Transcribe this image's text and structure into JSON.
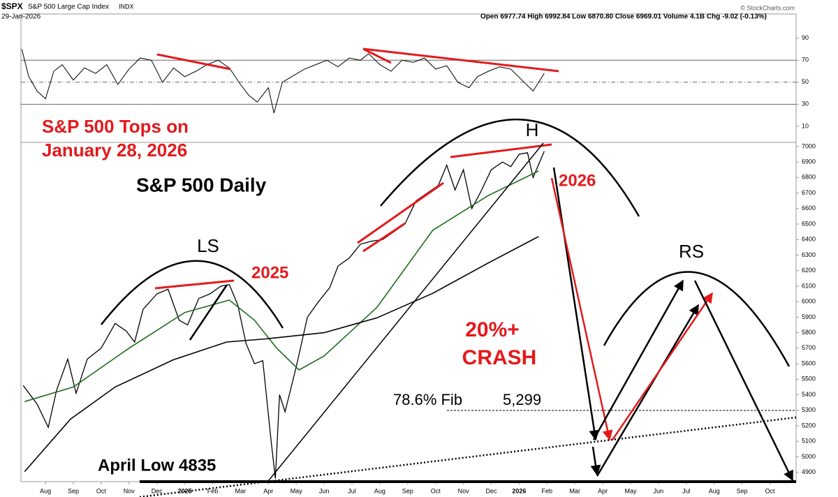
{
  "header": {
    "symbol": "$SPX",
    "name": "S&P 500 Large Cap Index",
    "exchange": "INDX",
    "date": "29-Jan-2026",
    "quote": "Open 6977.74 High 6992.84 Low 6870.80 Close 6969.01 Volume 4.1B Chg -9.02 (-0.13%)",
    "credit": "© StockCharts.com"
  },
  "annotations": {
    "tops1": "S&P 500 Tops on",
    "tops2": "January 28, 2026",
    "daily": "S&P 500 Daily",
    "ls": "LS",
    "y2025": "2025",
    "h": "H",
    "y2026": "2026",
    "rs": "RS",
    "crash1": "20%+",
    "crash2": "CRASH",
    "fib": "78.6% Fib",
    "fib_value": "5,299",
    "april": "April Low 4835"
  },
  "chart_data": {
    "type": "line",
    "xlim": [
      -0.88,
      26.94
    ],
    "xticks": [
      {
        "value": 0,
        "label": "Aug"
      },
      {
        "value": 1,
        "label": "Sep"
      },
      {
        "value": 2,
        "label": "Oct"
      },
      {
        "value": 3,
        "label": "Nov"
      },
      {
        "value": 4,
        "label": "Dec"
      },
      {
        "value": 5,
        "label": "2025"
      },
      {
        "value": 6,
        "label": "Feb"
      },
      {
        "value": 7,
        "label": "Mar"
      },
      {
        "value": 8,
        "label": "Apr"
      },
      {
        "value": 9,
        "label": "May"
      },
      {
        "value": 10,
        "label": "Jun"
      },
      {
        "value": 11,
        "label": "Jul"
      },
      {
        "value": 12,
        "label": "Aug"
      },
      {
        "value": 13,
        "label": "Sep"
      },
      {
        "value": 14,
        "label": "Oct"
      },
      {
        "value": 15,
        "label": "Nov"
      },
      {
        "value": 16,
        "label": "Dec"
      },
      {
        "value": 17,
        "label": "2026"
      },
      {
        "value": 18,
        "label": "Feb"
      },
      {
        "value": 19,
        "label": "Mar"
      },
      {
        "value": 20,
        "label": "Apr"
      },
      {
        "value": 21,
        "label": "May"
      },
      {
        "value": 22,
        "label": "Jun"
      },
      {
        "value": 23,
        "label": "Jul"
      },
      {
        "value": 24,
        "label": "Aug"
      },
      {
        "value": 25,
        "label": "Sep"
      },
      {
        "value": 26,
        "label": "Oct"
      }
    ],
    "ylim": [
      4840,
      7022
    ],
    "yticks": [
      4900,
      5000,
      5100,
      5200,
      5300,
      5400,
      5500,
      5600,
      5700,
      5800,
      5900,
      6000,
      6100,
      6200,
      6300,
      6400,
      6500,
      6600,
      6700,
      6800,
      6900,
      7000
    ],
    "series": [
      {
        "name": "SPX",
        "color": "#000000",
        "x": [
          -0.8,
          -0.3,
          0.1,
          0.4,
          0.8,
          1.1,
          1.5,
          2.0,
          2.5,
          2.9,
          3.2,
          3.5,
          4.0,
          4.4,
          4.8,
          5.1,
          5.5,
          5.9,
          6.3,
          6.6,
          6.9,
          7.2,
          7.5,
          7.8,
          8.1,
          8.25,
          8.4,
          8.6,
          9.0,
          9.4,
          9.8,
          10.2,
          10.5,
          10.9,
          11.3,
          11.7,
          12.1,
          12.5,
          12.9,
          13.3,
          13.7,
          14.1,
          14.4,
          14.7,
          15.0,
          15.3,
          15.6,
          16.0,
          16.4,
          16.7,
          17.0,
          17.3,
          17.5,
          17.9
        ],
        "values": [
          5460,
          5340,
          5190,
          5430,
          5630,
          5410,
          5630,
          5700,
          5860,
          5810,
          5740,
          5950,
          6050,
          6080,
          5880,
          5850,
          6020,
          6050,
          6100,
          6110,
          5980,
          5730,
          5600,
          5620,
          5100,
          4860,
          5400,
          5290,
          5580,
          5900,
          6000,
          6090,
          6230,
          6280,
          6370,
          6390,
          6400,
          6450,
          6500,
          6650,
          6700,
          6750,
          6880,
          6720,
          6850,
          6600,
          6700,
          6850,
          6900,
          6870,
          6950,
          6960,
          6800,
          6969
        ]
      },
      {
        "name": "50-day MA",
        "color": "#1e6b1e",
        "x": [
          -0.75,
          1,
          3,
          5,
          6.6,
          7.5,
          8.3,
          9.1,
          10,
          11.9,
          13.9,
          15.9,
          17.7
        ],
        "values": [
          5356,
          5450,
          5700,
          5930,
          6010,
          5880,
          5700,
          5560,
          5650,
          5964,
          6460,
          6685,
          6842
        ]
      },
      {
        "name": "200-day MA",
        "color": "#000000",
        "x": [
          -0.75,
          0.9,
          2.5,
          4.6,
          6.5,
          7.9,
          10,
          11.9,
          13.9,
          15.9,
          17.7
        ],
        "values": [
          4905,
          5243,
          5450,
          5626,
          5740,
          5760,
          5800,
          5896,
          6054,
          6250,
          6420
        ]
      }
    ],
    "rsi": {
      "ylim": [
        -4,
        112
      ],
      "yticks": [
        10,
        30,
        50,
        70,
        90
      ],
      "levels": [
        30,
        50,
        70
      ],
      "x": [
        -0.85,
        -0.6,
        -0.3,
        0,
        0.3,
        0.6,
        1,
        1.4,
        1.8,
        2.2,
        2.6,
        3,
        3.4,
        3.8,
        4.2,
        4.6,
        5,
        5.4,
        5.8,
        6.2,
        6.6,
        7,
        7.3,
        7.6,
        8,
        8.2,
        8.5,
        8.9,
        9.3,
        9.7,
        10.1,
        10.5,
        10.9,
        11.3,
        11.6,
        12,
        12.4,
        12.8,
        13.2,
        13.6,
        14,
        14.4,
        14.8,
        15.2,
        15.5,
        15.9,
        16.3,
        16.7,
        17.1,
        17.5,
        17.9
      ],
      "values": [
        80,
        55,
        42,
        35,
        60,
        66,
        52,
        63,
        58,
        66,
        48,
        62,
        72,
        70,
        50,
        63,
        55,
        60,
        66,
        70,
        63,
        48,
        38,
        32,
        45,
        22,
        50,
        56,
        62,
        66,
        70,
        64,
        72,
        70,
        76,
        66,
        60,
        70,
        68,
        72,
        62,
        65,
        50,
        45,
        55,
        60,
        64,
        62,
        52,
        42,
        58
      ]
    }
  }
}
